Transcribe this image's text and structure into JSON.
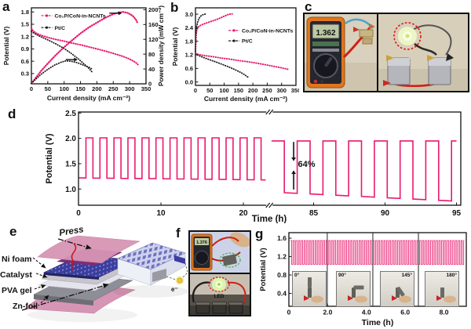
{
  "colors": {
    "pink": "#e9196d",
    "black": "#1a1a1a",
    "red_marker": "#e01408",
    "led_green": "#8fd44c"
  },
  "panels": {
    "a": {
      "label": "a"
    },
    "b": {
      "label": "b"
    },
    "c": {
      "label": "c",
      "multimeter_reading": "1.362"
    },
    "d": {
      "label": "d"
    },
    "e": {
      "label": "e",
      "layer_labels": [
        "Ni foam",
        "Catalyst",
        "PVA gel",
        "Zn-foil"
      ],
      "press_label": "Press",
      "electron_label": "e⁻"
    },
    "f": {
      "label": "f",
      "multimeter_reading": "1.376",
      "led_label": "LED"
    },
    "g": {
      "label": "g",
      "insets": [
        "0°",
        "90°",
        "145°",
        "180°"
      ]
    }
  },
  "chart_data": {
    "a": {
      "type": "line",
      "xlabel": "Current density (mA cm⁻²)",
      "ylabel_left": "Potential (V)",
      "ylabel_right": "Power density (mW cm⁻²)",
      "xlim": [
        0,
        350
      ],
      "xticks": [
        {
          "v": 0,
          "label": "0"
        },
        {
          "v": 50,
          "label": "50"
        },
        {
          "v": 100,
          "label": "100"
        },
        {
          "v": 150,
          "label": "150"
        },
        {
          "v": 200,
          "label": "200"
        },
        {
          "v": 250,
          "label": "250"
        },
        {
          "v": 300,
          "label": "300"
        },
        {
          "v": 350,
          "label": "350"
        }
      ],
      "ylim_left": [
        0.05,
        1.9
      ],
      "yticks_left": [
        {
          "v": 0.3,
          "label": "0.3"
        },
        {
          "v": 0.6,
          "label": "0.6"
        },
        {
          "v": 0.9,
          "label": "0.9"
        },
        {
          "v": 1.2,
          "label": "1.2"
        },
        {
          "v": 1.5,
          "label": "1.5"
        },
        {
          "v": 1.8,
          "label": "1.8"
        }
      ],
      "ylim_right": [
        0,
        205
      ],
      "yticks_right": [
        {
          "v": 0,
          "label": "0"
        },
        {
          "v": 40,
          "label": "40"
        },
        {
          "v": 80,
          "label": "80"
        },
        {
          "v": 120,
          "label": "120"
        },
        {
          "v": 160,
          "label": "160"
        },
        {
          "v": 200,
          "label": "200"
        }
      ],
      "legend": [
        {
          "label": "Co₂P/CoN-in-NCNTs",
          "color": "#e9196d"
        },
        {
          "label": "Pt/C",
          "color": "#1a1a1a"
        }
      ],
      "series": [
        {
          "name": "co2p-discharge-voltage",
          "axis": "left",
          "color": "#e9196d",
          "width": 2.1,
          "marker": "dots",
          "points": [
            [
              0,
              1.4
            ],
            [
              5,
              1.34
            ],
            [
              15,
              1.28
            ],
            [
              30,
              1.23
            ],
            [
              50,
              1.18
            ],
            [
              75,
              1.13
            ],
            [
              100,
              1.09
            ],
            [
              125,
              1.04
            ],
            [
              150,
              1.0
            ],
            [
              175,
              0.95
            ],
            [
              200,
              0.9
            ],
            [
              225,
              0.85
            ],
            [
              250,
              0.79
            ],
            [
              275,
              0.73
            ],
            [
              295,
              0.67
            ],
            [
              310,
              0.61
            ],
            [
              320,
              0.56
            ],
            [
              325,
              0.52
            ]
          ]
        },
        {
          "name": "co2p-power-density",
          "axis": "right",
          "color": "#e9196d",
          "width": 2.3,
          "marker": "dots",
          "points": [
            [
              0,
              1
            ],
            [
              15,
              18
            ],
            [
              30,
              35
            ],
            [
              50,
              55
            ],
            [
              75,
              78
            ],
            [
              100,
              99
            ],
            [
              125,
              118
            ],
            [
              150,
              136
            ],
            [
              175,
              152
            ],
            [
              200,
              165
            ],
            [
              225,
              178
            ],
            [
              250,
              188
            ],
            [
              265,
              192
            ],
            [
              280,
              194
            ],
            [
              295,
              191
            ],
            [
              310,
              183
            ],
            [
              320,
              172
            ],
            [
              325,
              162
            ]
          ]
        },
        {
          "name": "ptc-discharge-voltage",
          "axis": "left",
          "color": "#1a1a1a",
          "width": 1.8,
          "marker": "dots",
          "points": [
            [
              0,
              1.33
            ],
            [
              10,
              1.27
            ],
            [
              25,
              1.21
            ],
            [
              50,
              1.12
            ],
            [
              75,
              1.02
            ],
            [
              100,
              0.91
            ],
            [
              120,
              0.8
            ],
            [
              140,
              0.68
            ],
            [
              160,
              0.54
            ],
            [
              175,
              0.43
            ],
            [
              185,
              0.34
            ]
          ]
        },
        {
          "name": "ptc-power-density",
          "axis": "right",
          "color": "#1a1a1a",
          "width": 1.8,
          "marker": "dots",
          "points": [
            [
              0,
              1
            ],
            [
              15,
              14
            ],
            [
              30,
              26
            ],
            [
              50,
              39
            ],
            [
              70,
              50
            ],
            [
              90,
              58
            ],
            [
              105,
              62
            ],
            [
              120,
              61
            ],
            [
              140,
              57
            ],
            [
              160,
              50
            ],
            [
              175,
              45
            ],
            [
              185,
              40
            ]
          ]
        }
      ],
      "annotations": [
        {
          "type": "harrow",
          "t": 238,
          "v": 1.77,
          "len": 13
        },
        {
          "type": "harrow",
          "t": 105,
          "v": 0.64,
          "len": 12
        }
      ]
    },
    "b": {
      "type": "line",
      "xlabel": "Current density (mA cm⁻²)",
      "ylabel_left": "Potential (V)",
      "xlim": [
        0,
        350
      ],
      "xticks": [
        {
          "v": 0,
          "label": "0"
        },
        {
          "v": 50,
          "label": "50"
        },
        {
          "v": 100,
          "label": "100"
        },
        {
          "v": 150,
          "label": "150"
        },
        {
          "v": 200,
          "label": "200"
        },
        {
          "v": 250,
          "label": "250"
        },
        {
          "v": 300,
          "label": "300"
        },
        {
          "v": 350,
          "label": "350"
        }
      ],
      "ylim_left": [
        -0.15,
        3.28
      ],
      "yticks_left": [
        {
          "v": 0.0,
          "label": "0.0"
        },
        {
          "v": 0.6,
          "label": "0.6"
        },
        {
          "v": 1.2,
          "label": "1.2"
        },
        {
          "v": 1.8,
          "label": "1.8"
        },
        {
          "v": 2.4,
          "label": "2.4"
        },
        {
          "v": 3.0,
          "label": "3.0"
        }
      ],
      "legend": [
        {
          "label": "Co₂P/CoN-in-NCNTs",
          "color": "#e9196d"
        },
        {
          "label": "Pt/C",
          "color": "#1a1a1a"
        }
      ],
      "series": [
        {
          "name": "co2p-discharge",
          "axis": "left",
          "color": "#e9196d",
          "width": 2.0,
          "marker": "dots",
          "points": [
            [
              0,
              1.27
            ],
            [
              10,
              1.22
            ],
            [
              30,
              1.17
            ],
            [
              60,
              1.12
            ],
            [
              90,
              1.06
            ],
            [
              120,
              1.01
            ],
            [
              150,
              0.95
            ],
            [
              180,
              0.9
            ],
            [
              210,
              0.84
            ],
            [
              240,
              0.77
            ],
            [
              270,
              0.7
            ],
            [
              295,
              0.64
            ],
            [
              310,
              0.6
            ],
            [
              322,
              0.56
            ]
          ]
        },
        {
          "name": "co2p-charge",
          "axis": "left",
          "color": "#e9196d",
          "width": 2.0,
          "marker": "dots",
          "points": [
            [
              0,
              1.35
            ],
            [
              1,
              1.8
            ],
            [
              2,
              2.05
            ],
            [
              4,
              2.25
            ],
            [
              7,
              2.38
            ],
            [
              12,
              2.46
            ],
            [
              20,
              2.52
            ],
            [
              32,
              2.58
            ],
            [
              45,
              2.64
            ],
            [
              60,
              2.7
            ],
            [
              75,
              2.77
            ],
            [
              90,
              2.85
            ],
            [
              100,
              2.91
            ],
            [
              110,
              2.96
            ],
            [
              118,
              3.0
            ],
            [
              128,
              3.01
            ]
          ]
        },
        {
          "name": "ptc-charge",
          "axis": "left",
          "color": "#1a1a1a",
          "width": 1.8,
          "marker": "dots",
          "points": [
            [
              0,
              1.35
            ],
            [
              1,
              1.9
            ],
            [
              2,
              2.2
            ],
            [
              4,
              2.45
            ],
            [
              7,
              2.62
            ],
            [
              10,
              2.74
            ],
            [
              14,
              2.84
            ],
            [
              19,
              2.92
            ],
            [
              25,
              2.97
            ],
            [
              32,
              3.0
            ],
            [
              38,
              3.01
            ]
          ]
        },
        {
          "name": "ptc-discharge",
          "axis": "left",
          "color": "#1a1a1a",
          "width": 1.8,
          "marker": "dots",
          "points": [
            [
              0,
              1.24
            ],
            [
              15,
              1.15
            ],
            [
              35,
              1.05
            ],
            [
              55,
              0.96
            ],
            [
              75,
              0.87
            ],
            [
              95,
              0.77
            ],
            [
              115,
              0.67
            ],
            [
              135,
              0.56
            ],
            [
              155,
              0.44
            ],
            [
              170,
              0.33
            ],
            [
              182,
              0.22
            ]
          ]
        }
      ]
    },
    "d": {
      "type": "squarewave",
      "xlabel": "Time (h)",
      "ylabel_left": "Potential (V)",
      "xsegments": [
        {
          "t0": 0,
          "t1": 23,
          "f0": 0,
          "f1": 0.496
        },
        {
          "t0": 82,
          "t1": 95.3,
          "f0": 0.503,
          "f1": 1.0
        }
      ],
      "xbreak": 0.4995,
      "xticks": [
        {
          "v": 0,
          "label": "0"
        },
        {
          "v": 10,
          "label": "10"
        },
        {
          "v": 20,
          "label": "20"
        },
        {
          "v": 85,
          "label": "85"
        },
        {
          "v": 90,
          "label": "90"
        },
        {
          "v": 95,
          "label": "95"
        }
      ],
      "ylim_left": [
        0.68,
        2.52
      ],
      "yticks_left": [
        {
          "v": 1.0,
          "label": "1.0"
        },
        {
          "v": 1.5,
          "label": "1.5"
        },
        {
          "v": 2.0,
          "label": "2.0"
        },
        {
          "v": 2.5,
          "label": "2.5"
        }
      ],
      "series": [
        {
          "name": "galvanostatic-cycling",
          "color": "#e9196d",
          "width": 1.6,
          "sections": [
            {
              "t0": 0.05,
              "t1": 22.7,
              "period": 1.7,
              "high": 2.01,
              "low_start": 1.22,
              "low_end": 1.18,
              "start": "low"
            },
            {
              "t0": 82.05,
              "t1": 95.0,
              "period": 1.8,
              "high": 1.95,
              "low_start": 0.94,
              "low_end": 0.76,
              "start": "high"
            }
          ]
        }
      ],
      "annotations": [
        {
          "type": "varrow",
          "t": 83.6,
          "v1": 1.93,
          "v2": 1.56
        },
        {
          "type": "text",
          "t": 83.9,
          "v": 1.44,
          "text": "64%",
          "size": 11,
          "anchor": "start"
        },
        {
          "type": "varrow",
          "t": 83.6,
          "v1": 0.99,
          "v2": 1.36
        }
      ]
    },
    "g": {
      "type": "squarewave",
      "xlabel": "Time (h)",
      "ylabel_left": "Potential (V)",
      "xlim": [
        0,
        9.15
      ],
      "xticks": [
        {
          "v": 0,
          "label": "0"
        },
        {
          "v": 2,
          "label": "2.0"
        },
        {
          "v": 4,
          "label": "4.0"
        },
        {
          "v": 6,
          "label": "6.0"
        },
        {
          "v": 8,
          "label": "8.0"
        }
      ],
      "ylim_left": [
        0.12,
        1.72
      ],
      "yticks_left": [
        {
          "v": 0.4,
          "label": "0.4"
        },
        {
          "v": 0.8,
          "label": "0.8"
        },
        {
          "v": 1.2,
          "label": "1.2"
        },
        {
          "v": 1.6,
          "label": "1.6"
        }
      ],
      "dividers": [
        1.98,
        4.33,
        6.68
      ],
      "series": [
        {
          "name": "bending-cycling",
          "color": "#e9196d",
          "width": 0.8,
          "sections": [
            {
              "t0": 0.07,
              "t1": 9.05,
              "period": 0.142,
              "high": 1.55,
              "low_start": 1.03,
              "low_end": 1.03,
              "start": "high"
            }
          ]
        }
      ]
    }
  }
}
